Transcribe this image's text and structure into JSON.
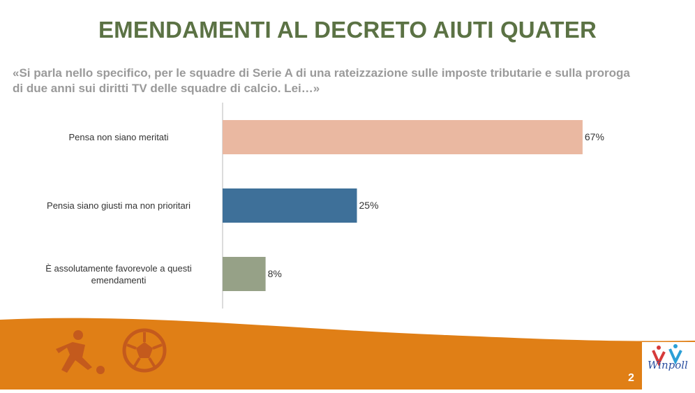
{
  "title": "EMENDAMENTI AL DECRETO AIUTI QUATER",
  "question": "«Si parla nello specifico, per le squadre di Serie A di una rateizzazione sulle imposte tributarie e sulla proroga di due anni sui diritti TV delle squadre di calcio. Lei…»",
  "page_number": "2",
  "logo": {
    "text": "Winpoll"
  },
  "colors": {
    "title": "#5b7244",
    "bar1": "#eab8a1",
    "bar2": "#3e7099",
    "bar3": "#96a187",
    "footer": "#e07f16",
    "footer_icon": "#c45a1d"
  },
  "icons": [
    "soccer-player-icon",
    "soccer-ball-icon"
  ],
  "chart_data": {
    "type": "bar",
    "orientation": "horizontal",
    "categories": [
      "Pensa non siano meritati",
      "Pensia siano giusti ma non prioritari",
      "È assolutamente favorevole a questi emendamenti"
    ],
    "values": [
      67,
      25,
      8
    ],
    "value_labels": [
      "67%",
      "25%",
      "8%"
    ],
    "unit": "%",
    "xlim": [
      0,
      100
    ],
    "grid": false,
    "legend": "none"
  }
}
